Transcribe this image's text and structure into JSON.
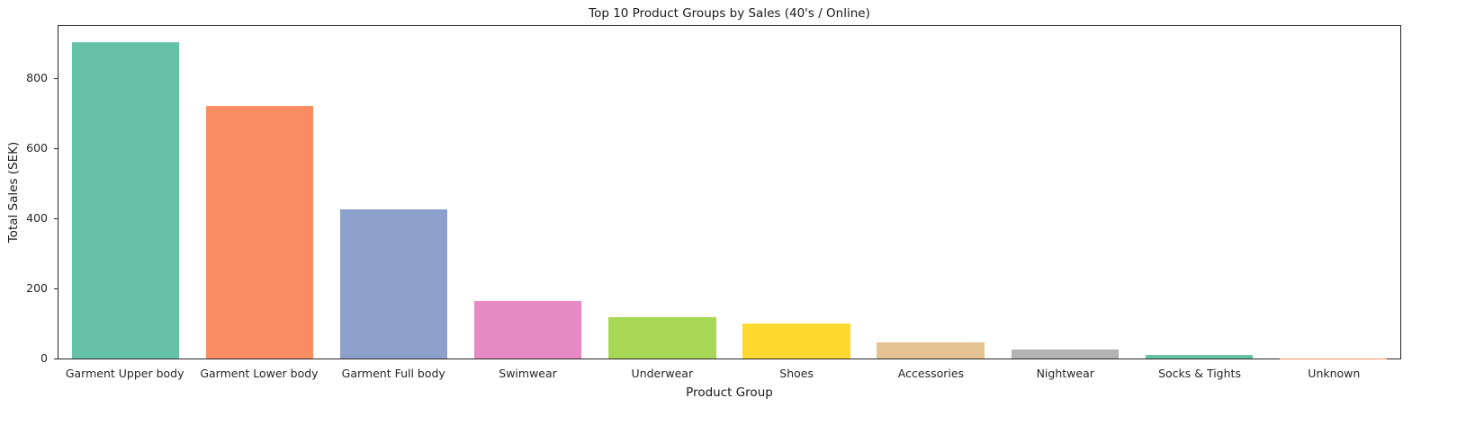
{
  "chart_data": {
    "type": "bar",
    "title": "Top 10 Product Groups by Sales (40's / Online)",
    "xlabel": "Product Group",
    "ylabel": "Total Sales (SEK)",
    "categories": [
      "Garment Upper body",
      "Garment Lower body",
      "Garment Full body",
      "Swimwear",
      "Underwear",
      "Shoes",
      "Accessories",
      "Nightwear",
      "Socks & Tights",
      "Unknown"
    ],
    "values": [
      905,
      722,
      425,
      164,
      118,
      100,
      46,
      25,
      10,
      1
    ],
    "ylim": [
      0,
      950
    ],
    "yticks": [
      0,
      200,
      400,
      600,
      800
    ],
    "grid": false,
    "legend": false,
    "palette": [
      "#66c2a5",
      "#fc8d62",
      "#8da0cb",
      "#e78ac3",
      "#a6d854",
      "#ffd92f",
      "#e5c494",
      "#b3b3b3",
      "#66c2a5",
      "#fc8d62"
    ],
    "text_color": "#262626",
    "spine_color": "#262626",
    "background_color": "#ffffff"
  }
}
